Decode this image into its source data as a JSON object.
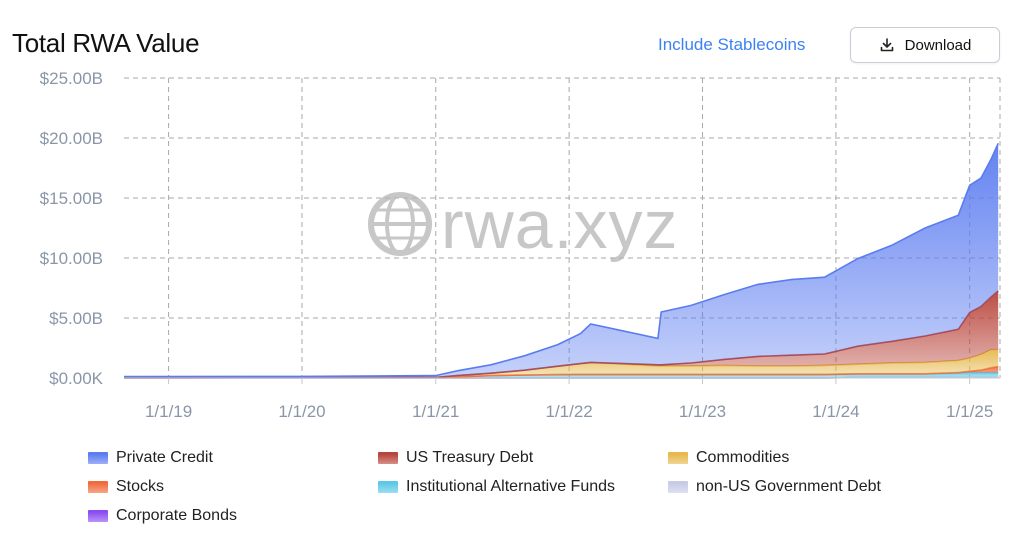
{
  "header": {
    "title": "Total RWA Value",
    "stablecoins_link": "Include Stablecoins",
    "download_label": "Download",
    "download_icon": "download-icon"
  },
  "watermark": "rwa.xyz",
  "colors": {
    "private_credit": "#5b7cf0",
    "us_treasury_debt": "#b8443a",
    "commodities": "#e6b84d",
    "stocks": "#f06a3c",
    "institutional_alternative_funds": "#5cc8e8",
    "non_us_government_debt": "#c7cbe6",
    "corporate_bonds": "#8a4cf0"
  },
  "chart_data": {
    "type": "area",
    "stacked": true,
    "title": "Total RWA Value",
    "xlabel": "",
    "ylabel": "",
    "ylim": [
      0,
      25
    ],
    "y_tick_labels": [
      "$0.00K",
      "$5.00B",
      "$10.00B",
      "$15.00B",
      "$20.00B",
      "$25.00B"
    ],
    "y_ticks": [
      0,
      5,
      10,
      15,
      20,
      25
    ],
    "x_tick_labels": [
      "1/1/19",
      "1/1/20",
      "1/1/21",
      "1/1/22",
      "1/1/23",
      "1/1/24",
      "1/1/25"
    ],
    "x_ticks": [
      "2019-01-01",
      "2020-01-01",
      "2021-01-01",
      "2022-01-01",
      "2023-01-01",
      "2024-01-01",
      "2025-01-01"
    ],
    "xlim": [
      "2018-09-01",
      "2025-03-25"
    ],
    "grid": true,
    "legend_position": "bottom",
    "x": [
      "2018-09-01",
      "2020-01-01",
      "2021-01-01",
      "2021-03-01",
      "2021-06-01",
      "2021-09-01",
      "2021-12-01",
      "2022-02-01",
      "2022-03-01",
      "2022-06-01",
      "2022-09-01",
      "2022-09-10",
      "2022-12-01",
      "2023-03-01",
      "2023-06-01",
      "2023-09-01",
      "2023-12-01",
      "2024-03-01",
      "2024-06-01",
      "2024-09-01",
      "2024-12-01",
      "2025-01-01",
      "2025-02-01",
      "2025-03-01",
      "2025-03-20"
    ],
    "series": [
      {
        "name": "Corporate Bonds",
        "values": [
          0,
          0,
          0,
          0,
          0,
          0,
          0,
          0,
          0,
          0,
          0,
          0,
          0,
          0,
          0,
          0,
          0,
          0.05,
          0.05,
          0.05,
          0.06,
          0.06,
          0.06,
          0.06,
          0.06
        ]
      },
      {
        "name": "non-US Government Debt",
        "values": [
          0,
          0,
          0,
          0,
          0,
          0,
          0,
          0,
          0,
          0,
          0,
          0,
          0,
          0,
          0,
          0,
          0,
          0,
          0,
          0,
          0,
          0,
          0,
          0,
          0
        ]
      },
      {
        "name": "Institutional Alternative Funds",
        "values": [
          0.02,
          0.03,
          0.05,
          0.1,
          0.2,
          0.25,
          0.28,
          0.3,
          0.3,
          0.3,
          0.3,
          0.3,
          0.3,
          0.3,
          0.3,
          0.3,
          0.3,
          0.3,
          0.3,
          0.3,
          0.35,
          0.4,
          0.4,
          0.4,
          0.4
        ]
      },
      {
        "name": "Stocks",
        "values": [
          0,
          0,
          0,
          0,
          0,
          0,
          0,
          0,
          0,
          0,
          0,
          0,
          0,
          0,
          0,
          0,
          0,
          0,
          0,
          0,
          0.05,
          0.1,
          0.2,
          0.4,
          0.5
        ]
      },
      {
        "name": "Commodities",
        "values": [
          0,
          0,
          0,
          0.1,
          0.2,
          0.4,
          0.7,
          0.9,
          1.0,
          0.85,
          0.7,
          0.7,
          0.7,
          0.75,
          0.7,
          0.7,
          0.75,
          0.8,
          0.9,
          0.95,
          1.0,
          1.1,
          1.3,
          1.5,
          1.4
        ]
      },
      {
        "name": "US Treasury Debt",
        "values": [
          0,
          0,
          0,
          0,
          0,
          0,
          0,
          0,
          0,
          0.05,
          0.1,
          0.1,
          0.25,
          0.5,
          0.8,
          0.9,
          0.95,
          1.5,
          1.8,
          2.2,
          2.6,
          3.8,
          4.0,
          4.4,
          4.9
        ]
      },
      {
        "name": "Private Credit",
        "values": [
          0.1,
          0.1,
          0.15,
          0.4,
          0.7,
          1.2,
          1.8,
          2.5,
          3.2,
          2.7,
          2.2,
          4.4,
          4.8,
          5.4,
          6.0,
          6.3,
          6.4,
          7.3,
          8.0,
          9.0,
          9.5,
          10.6,
          10.7,
          11.5,
          12.3
        ]
      }
    ]
  },
  "legend": [
    {
      "label": "Private Credit",
      "key": "private_credit"
    },
    {
      "label": "US Treasury Debt",
      "key": "us_treasury_debt"
    },
    {
      "label": "Commodities",
      "key": "commodities"
    },
    {
      "label": "Stocks",
      "key": "stocks"
    },
    {
      "label": "Institutional Alternative Funds",
      "key": "institutional_alternative_funds"
    },
    {
      "label": "non-US Government Debt",
      "key": "non_us_government_debt"
    },
    {
      "label": "Corporate Bonds",
      "key": "corporate_bonds"
    }
  ]
}
